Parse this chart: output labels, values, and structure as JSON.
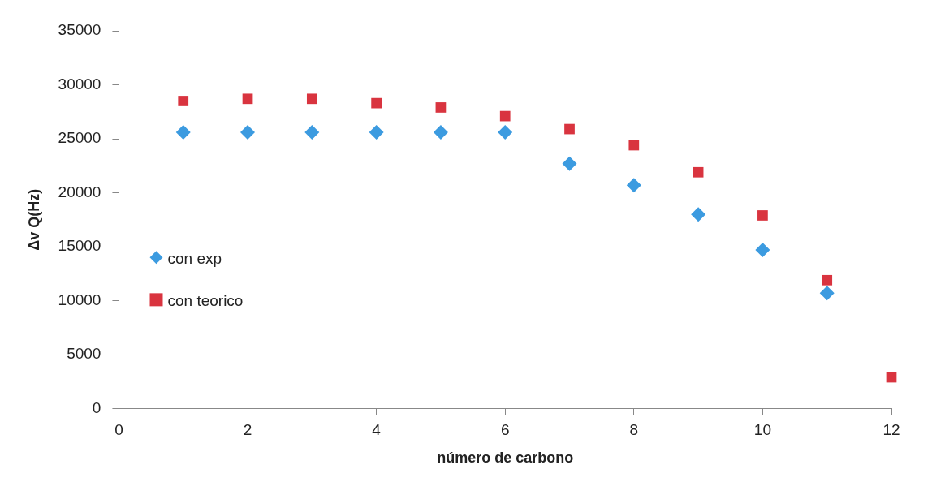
{
  "chart_data": {
    "type": "scatter",
    "xlabel": "número de carbono",
    "ylabel": "Δv Q(Hz)",
    "xlim": [
      0,
      12
    ],
    "xticks": [
      0,
      2,
      4,
      6,
      8,
      10,
      12
    ],
    "ylim": [
      0,
      35000
    ],
    "yticks": [
      0,
      5000,
      10000,
      15000,
      20000,
      25000,
      30000,
      35000
    ],
    "grid": false,
    "legend": "left",
    "series": [
      {
        "name": "con exp",
        "color": "#3c9be0",
        "marker": "diamond",
        "x": [
          1,
          2,
          3,
          4,
          5,
          6,
          7,
          8,
          9,
          10,
          11
        ],
        "values": [
          25600,
          25600,
          25600,
          25600,
          25600,
          25600,
          22700,
          20700,
          18000,
          14700,
          10700
        ]
      },
      {
        "name": "con teorico",
        "color": "#d9343f",
        "marker": "square",
        "x": [
          1,
          2,
          3,
          4,
          5,
          6,
          7,
          8,
          9,
          10,
          11,
          12
        ],
        "values": [
          28500,
          28700,
          28700,
          28300,
          27900,
          27100,
          25900,
          24400,
          21900,
          17900,
          11900,
          2900
        ]
      }
    ]
  }
}
